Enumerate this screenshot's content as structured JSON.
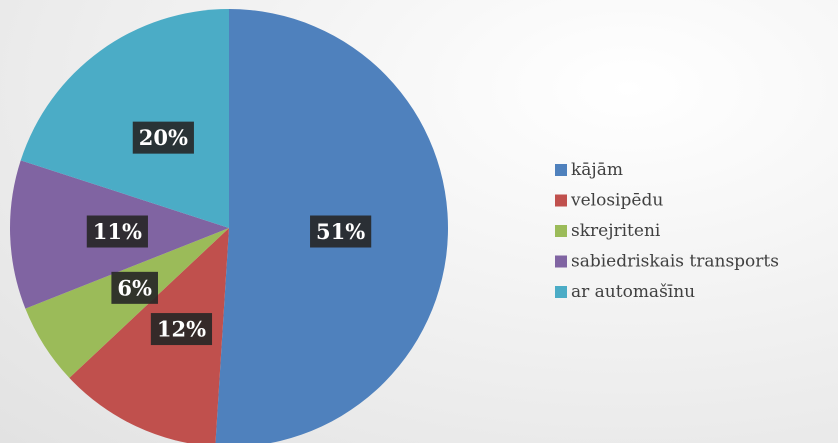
{
  "chart_data": {
    "type": "pie",
    "categories": [
      "kājām",
      "velosipēdu",
      "skrejriteni",
      "sabiedriskais transports",
      "ar automašīnu"
    ],
    "values": [
      51,
      12,
      6,
      11,
      20
    ],
    "value_labels": [
      "51%",
      "12%",
      "6%",
      "11%",
      "20%"
    ],
    "colors": [
      "#4f81bd",
      "#c0504d",
      "#9bbb59",
      "#8064a2",
      "#4bacc6"
    ],
    "legend": "right"
  }
}
